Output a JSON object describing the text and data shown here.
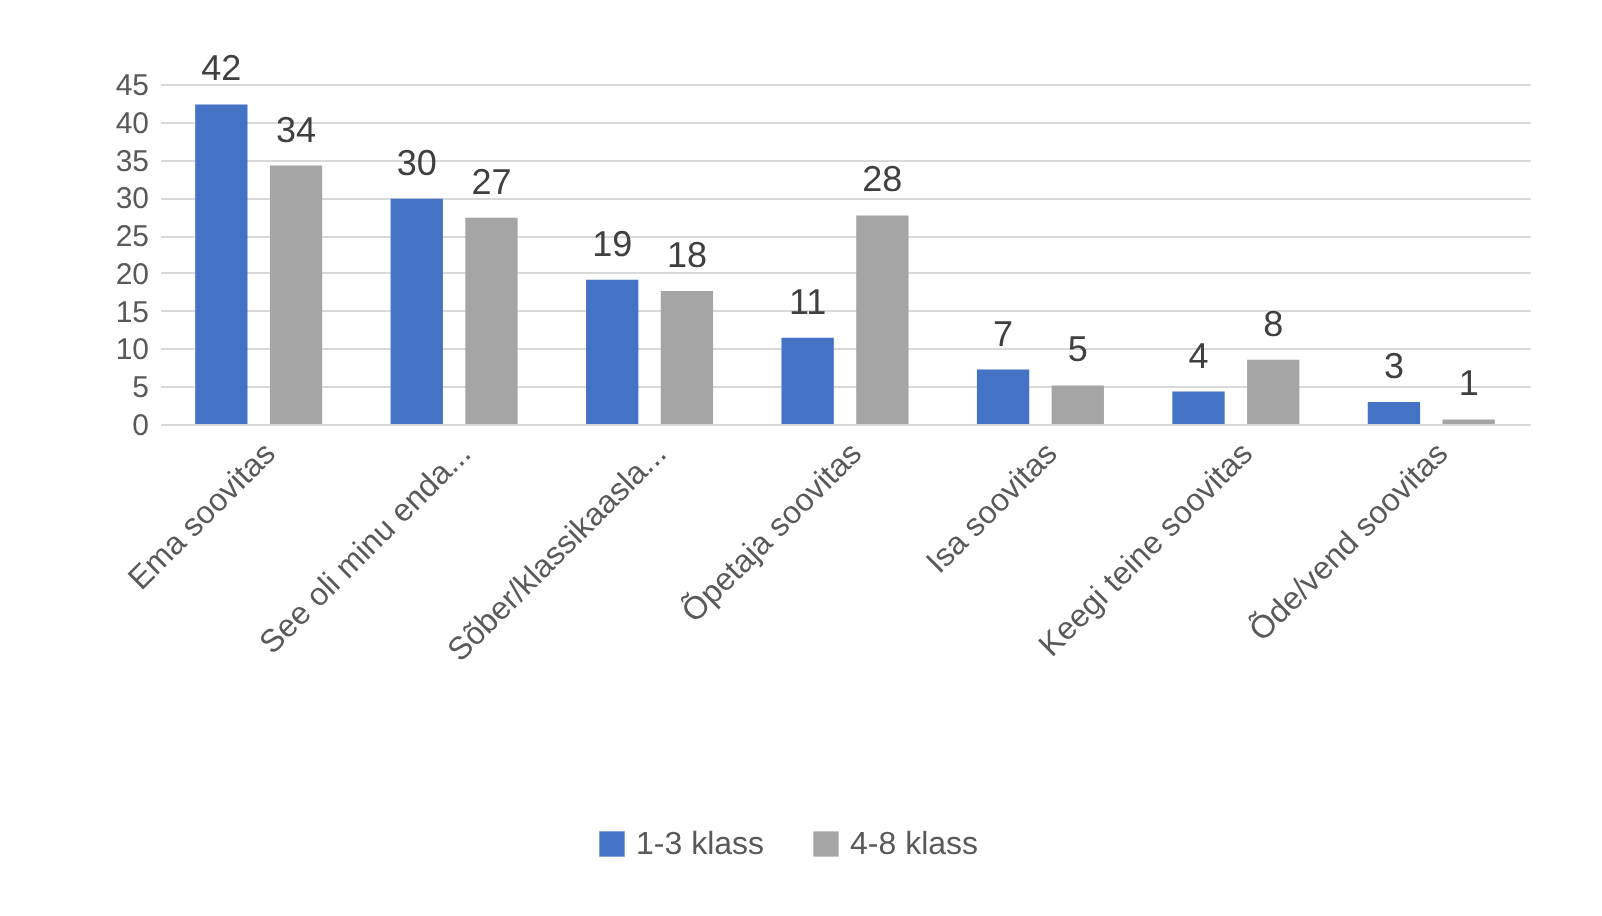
{
  "chart_data": {
    "type": "bar",
    "categories": [
      "Ema soovitas",
      "See oli minu enda...",
      "Sõber/klassikaasla...",
      "Õpetaja soovitas",
      "Isa soovitas",
      "Keegi teine soovitas",
      "Õde/vend soovitas"
    ],
    "series": [
      {
        "name": "1-3 klass",
        "color": "#4472c4",
        "values": [
          42.3,
          29.8,
          19.1,
          11.4,
          7.2,
          4.3,
          2.9
        ],
        "value_labels": [
          "42",
          "30",
          "19",
          "11",
          "7",
          "4",
          "3"
        ]
      },
      {
        "name": "4-8 klass",
        "color": "#a5a5a5",
        "values": [
          34.2,
          27.3,
          17.6,
          27.6,
          5.1,
          8.5,
          0.6
        ],
        "value_labels": [
          "34",
          "27",
          "18",
          "28",
          "5",
          "8",
          "1"
        ]
      }
    ],
    "ylim": [
      0,
      45
    ],
    "yticks": [
      0,
      5,
      10,
      15,
      20,
      25,
      30,
      35,
      40,
      45
    ],
    "grid": "y",
    "legend": "bottom"
  }
}
